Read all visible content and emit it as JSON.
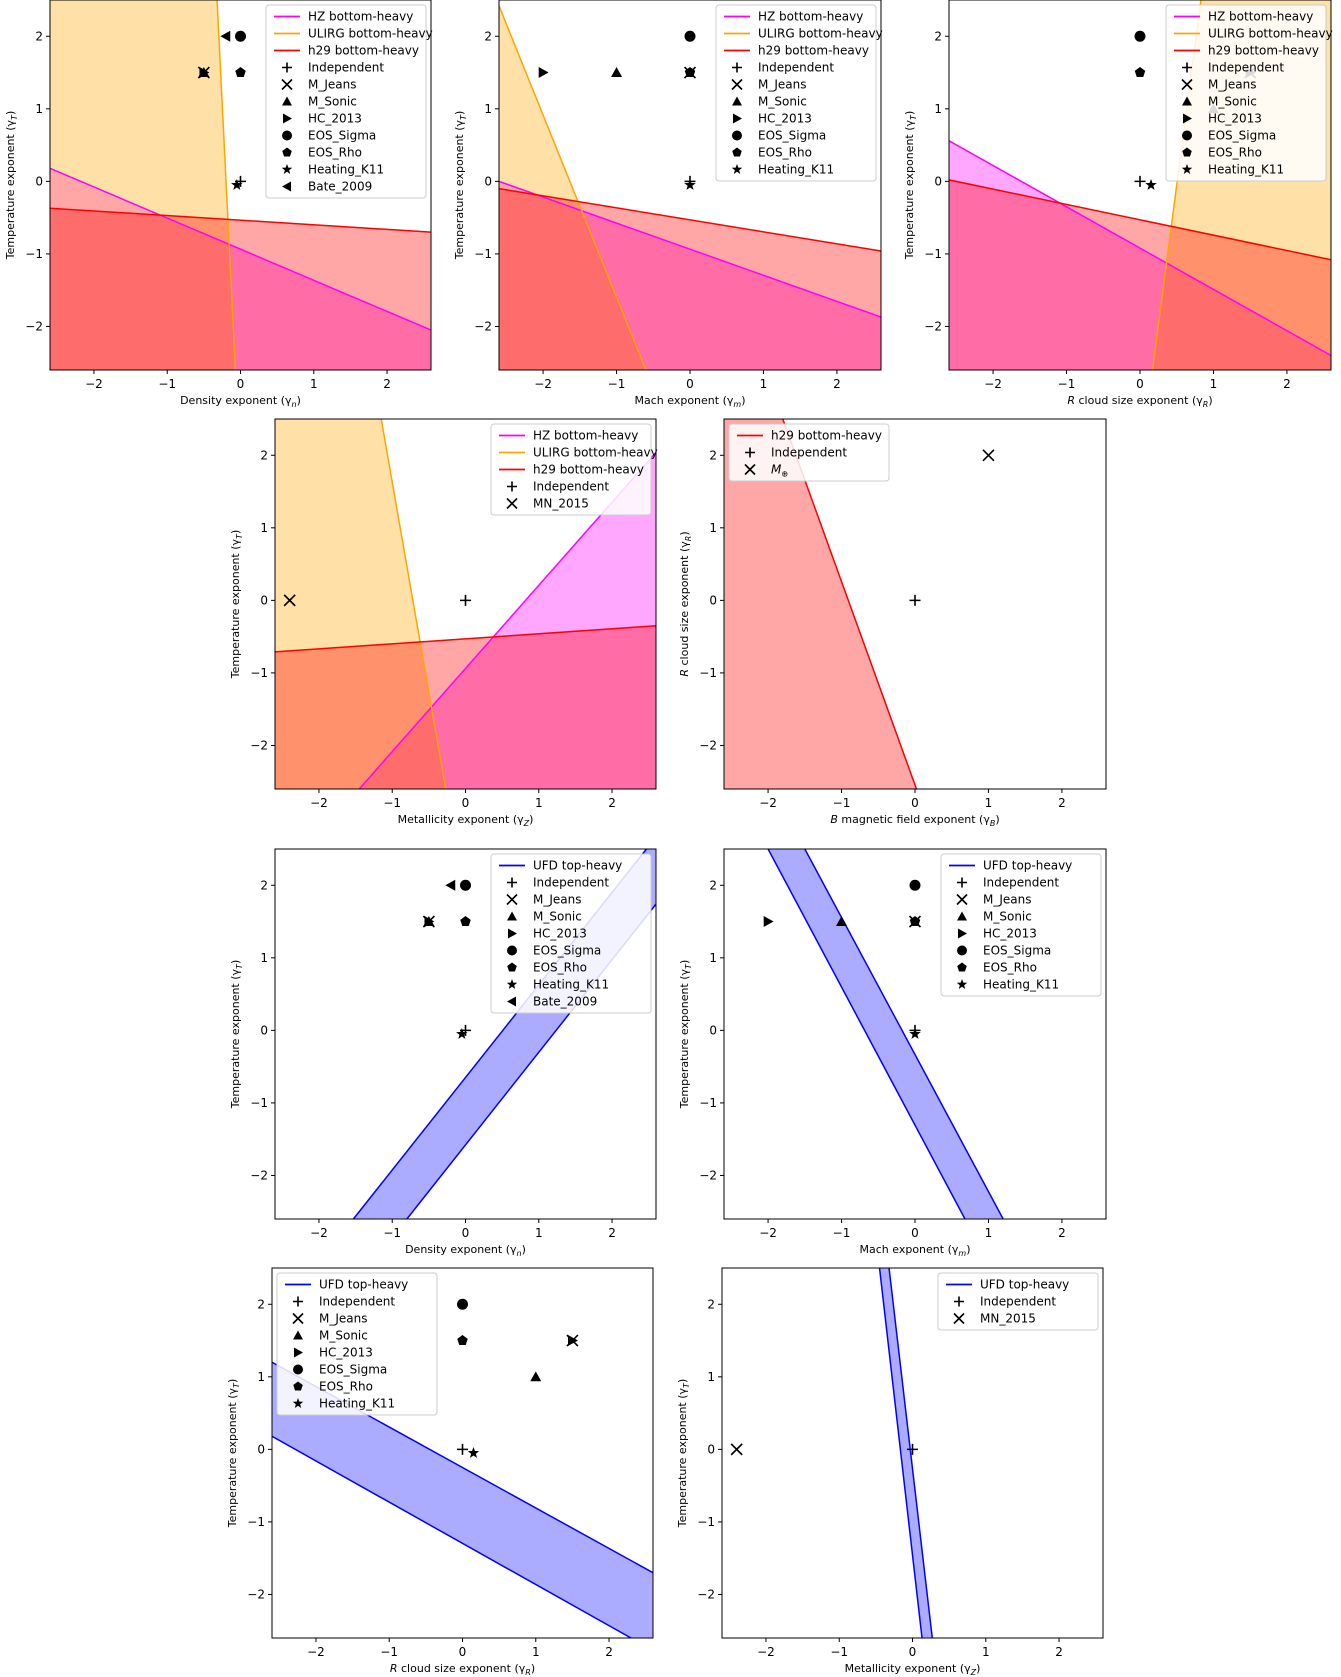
{
  "colors": {
    "HZ": "#ff00ff",
    "ULIRG": "#ffa500",
    "h29": "#ff0000",
    "UFD": "#0000ff",
    "fill_HZ": "#ff00ff",
    "fill_ULIRG": "#ffa500",
    "fill_h29": "#ff0000",
    "fill_UFD": "#0000ff"
  },
  "marker_shapes": {
    "Independent": "plus",
    "M_Jeans": "x",
    "M_Sonic": "triangle-up",
    "HC_2013": "triangle-right",
    "EOS_Sigma": "circle",
    "EOS_Rho": "pentagon",
    "Heating_K11": "star",
    "Bate_2009": "triangle-left",
    "MN_2015": "x",
    "M_oplus": "x"
  },
  "chart_data": [
    {
      "type": "scatter",
      "xlabel": "Density exponent (γ_n)",
      "ylabel": "Temperature exponent (γ_T)",
      "xlim": [
        -2.6,
        2.6
      ],
      "ylim": [
        -2.6,
        2.5
      ],
      "xticks": [
        -2,
        -1,
        0,
        1,
        2
      ],
      "yticks": [
        -2,
        -1,
        0,
        1,
        2
      ],
      "regions": [
        {
          "name": "HZ bottom-heavy",
          "color_key": "HZ",
          "line": [
            [
              -2.6,
              0.18
            ],
            [
              2.6,
              -2.05
            ]
          ],
          "fill": "below",
          "opacity": 0.35
        },
        {
          "name": "ULIRG bottom-heavy",
          "color_key": "ULIRG",
          "line": [
            [
              -0.32,
              2.5
            ],
            [
              -0.07,
              -2.6
            ]
          ],
          "fill": "left",
          "opacity": 0.35
        },
        {
          "name": "h29 bottom-heavy",
          "color_key": "h29",
          "line": [
            [
              -2.6,
              -0.37
            ],
            [
              2.6,
              -0.7
            ]
          ],
          "fill": "below",
          "opacity": 0.35
        }
      ],
      "points": [
        {
          "name": "Independent",
          "x": 0.0,
          "y": 0.0
        },
        {
          "name": "M_Jeans",
          "x": -0.5,
          "y": 1.5
        },
        {
          "name": "M_Sonic",
          "x": -0.5,
          "y": 1.5
        },
        {
          "name": "HC_2013",
          "x": -0.5,
          "y": 1.5
        },
        {
          "name": "EOS_Sigma",
          "x": 0.0,
          "y": 2.0
        },
        {
          "name": "EOS_Rho",
          "x": 0.0,
          "y": 1.5
        },
        {
          "name": "Heating_K11",
          "x": -0.05,
          "y": -0.05
        },
        {
          "name": "Bate_2009",
          "x": -0.2,
          "y": 2.0
        }
      ]
    },
    {
      "type": "scatter",
      "xlabel": "Mach exponent (γ_m)",
      "ylabel": "Temperature exponent (γ_T)",
      "xlim": [
        -2.6,
        2.6
      ],
      "ylim": [
        -2.6,
        2.5
      ],
      "xticks": [
        -2,
        -1,
        0,
        1,
        2
      ],
      "yticks": [
        -2,
        -1,
        0,
        1,
        2
      ],
      "regions": [
        {
          "name": "HZ bottom-heavy",
          "color_key": "HZ",
          "line": [
            [
              -2.6,
              0.0
            ],
            [
              2.6,
              -1.87
            ]
          ],
          "fill": "below",
          "opacity": 0.35
        },
        {
          "name": "ULIRG bottom-heavy",
          "color_key": "ULIRG",
          "line": [
            [
              -2.6,
              2.42
            ],
            [
              -0.6,
              -2.6
            ]
          ],
          "fill": "left",
          "opacity": 0.35
        },
        {
          "name": "h29 bottom-heavy",
          "color_key": "h29",
          "line": [
            [
              -2.6,
              -0.1
            ],
            [
              2.6,
              -0.96
            ]
          ],
          "fill": "below",
          "opacity": 0.35
        }
      ],
      "points": [
        {
          "name": "Independent",
          "x": 0.0,
          "y": 0.0
        },
        {
          "name": "M_Jeans",
          "x": 0.0,
          "y": 1.5
        },
        {
          "name": "M_Sonic",
          "x": -1.0,
          "y": 1.5
        },
        {
          "name": "HC_2013",
          "x": -2.0,
          "y": 1.5
        },
        {
          "name": "EOS_Sigma",
          "x": 0.0,
          "y": 2.0
        },
        {
          "name": "EOS_Rho",
          "x": 0.0,
          "y": 1.5
        },
        {
          "name": "Heating_K11",
          "x": 0.0,
          "y": -0.05
        }
      ]
    },
    {
      "type": "scatter",
      "xlabel": "R cloud size exponent (γ_R)",
      "ylabel": "Temperature exponent (γ_T)",
      "xlim": [
        -2.6,
        2.6
      ],
      "ylim": [
        -2.6,
        2.5
      ],
      "xticks": [
        -2,
        -1,
        0,
        1,
        2
      ],
      "yticks": [
        -2,
        -1,
        0,
        1,
        2
      ],
      "regions": [
        {
          "name": "HZ bottom-heavy",
          "color_key": "HZ",
          "line": [
            [
              -2.6,
              0.56
            ],
            [
              2.6,
              -2.4
            ]
          ],
          "fill": "below",
          "opacity": 0.35
        },
        {
          "name": "ULIRG bottom-heavy",
          "color_key": "ULIRG",
          "line": [
            [
              0.17,
              -2.6
            ],
            [
              0.83,
              2.5
            ]
          ],
          "fill": "right",
          "opacity": 0.35
        },
        {
          "name": "h29 bottom-heavy",
          "color_key": "h29",
          "line": [
            [
              -2.6,
              0.02
            ],
            [
              2.6,
              -1.08
            ]
          ],
          "fill": "below",
          "opacity": 0.35
        }
      ],
      "points": [
        {
          "name": "Independent",
          "x": 0.0,
          "y": 0.0
        },
        {
          "name": "M_Jeans",
          "x": 1.5,
          "y": 1.5
        },
        {
          "name": "M_Sonic",
          "x": 1.0,
          "y": 1.0
        },
        {
          "name": "HC_2013",
          "x": 1.5,
          "y": 1.5
        },
        {
          "name": "EOS_Sigma",
          "x": 0.0,
          "y": 2.0
        },
        {
          "name": "EOS_Rho",
          "x": 0.0,
          "y": 1.5
        },
        {
          "name": "Heating_K11",
          "x": 0.15,
          "y": -0.05
        }
      ]
    },
    {
      "type": "scatter",
      "xlabel": "Metallicity exponent (γ_Z)",
      "ylabel": "Temperature exponent (γ_T)",
      "xlim": [
        -2.6,
        2.6
      ],
      "ylim": [
        -2.6,
        2.5
      ],
      "xticks": [
        -2,
        -1,
        0,
        1,
        2
      ],
      "yticks": [
        -2,
        -1,
        0,
        1,
        2
      ],
      "regions": [
        {
          "name": "HZ bottom-heavy",
          "color_key": "HZ",
          "line": [
            [
              -1.45,
              -2.6
            ],
            [
              2.6,
              2.04
            ]
          ],
          "fill": "right",
          "opacity": 0.35
        },
        {
          "name": "ULIRG bottom-heavy",
          "color_key": "ULIRG",
          "line": [
            [
              -1.15,
              2.5
            ],
            [
              -0.27,
              -2.6
            ]
          ],
          "fill": "left",
          "opacity": 0.35
        },
        {
          "name": "h29 bottom-heavy",
          "color_key": "h29",
          "line": [
            [
              -2.6,
              -0.71
            ],
            [
              2.6,
              -0.35
            ]
          ],
          "fill": "below",
          "opacity": 0.35
        }
      ],
      "points": [
        {
          "name": "Independent",
          "x": 0.0,
          "y": 0.0
        },
        {
          "name": "MN_2015",
          "x": -2.4,
          "y": 0.0
        }
      ]
    },
    {
      "type": "scatter",
      "xlabel": "B magnetic field exponent (γ_B)",
      "ylabel": "R cloud size exponent (γ_R)",
      "xlim": [
        -2.6,
        2.6
      ],
      "ylim": [
        -2.6,
        2.5
      ],
      "xticks": [
        -2,
        -1,
        0,
        1,
        2
      ],
      "yticks": [
        -2,
        -1,
        0,
        1,
        2
      ],
      "regions": [
        {
          "name": "h29 bottom-heavy",
          "color_key": "h29",
          "line": [
            [
              -1.8,
              2.5
            ],
            [
              0.02,
              -2.6
            ]
          ],
          "fill": "left",
          "opacity": 0.35
        }
      ],
      "points": [
        {
          "name": "Independent",
          "x": 0.0,
          "y": 0.0
        },
        {
          "name": "M_⊕",
          "x": 1.0,
          "y": 2.0,
          "marker": "x"
        }
      ]
    },
    {
      "type": "scatter",
      "xlabel": "Density exponent (γ_n)",
      "ylabel": "Temperature exponent (γ_T)",
      "xlim": [
        -2.6,
        2.6
      ],
      "ylim": [
        -2.6,
        2.5
      ],
      "xticks": [
        -2,
        -1,
        0,
        1,
        2
      ],
      "yticks": [
        -2,
        -1,
        0,
        1,
        2
      ],
      "bands": [
        {
          "name": "UFD top-heavy",
          "color_key": "UFD",
          "line1": [
            [
              -1.53,
              -2.6
            ],
            [
              2.47,
              2.5
            ]
          ],
          "line2": [
            [
              -0.8,
              -2.6
            ],
            [
              2.6,
              1.74
            ]
          ],
          "opacity": 0.33
        }
      ],
      "points": [
        {
          "name": "Independent",
          "x": 0.0,
          "y": 0.0
        },
        {
          "name": "M_Jeans",
          "x": -0.5,
          "y": 1.5
        },
        {
          "name": "M_Sonic",
          "x": -0.5,
          "y": 1.5
        },
        {
          "name": "HC_2013",
          "x": -0.5,
          "y": 1.5
        },
        {
          "name": "EOS_Sigma",
          "x": 0.0,
          "y": 2.0
        },
        {
          "name": "EOS_Rho",
          "x": 0.0,
          "y": 1.5
        },
        {
          "name": "Heating_K11",
          "x": -0.05,
          "y": -0.05
        },
        {
          "name": "Bate_2009",
          "x": -0.2,
          "y": 2.0
        }
      ]
    },
    {
      "type": "scatter",
      "xlabel": "Mach exponent (γ_m)",
      "ylabel": "Temperature exponent (γ_T)",
      "xlim": [
        -2.6,
        2.6
      ],
      "ylim": [
        -2.6,
        2.5
      ],
      "xticks": [
        -2,
        -1,
        0,
        1,
        2
      ],
      "yticks": [
        -2,
        -1,
        0,
        1,
        2
      ],
      "bands": [
        {
          "name": "UFD top-heavy",
          "color_key": "UFD",
          "line1": [
            [
              -2.0,
              2.5
            ],
            [
              0.68,
              -2.6
            ]
          ],
          "line2": [
            [
              -1.5,
              2.5
            ],
            [
              1.2,
              -2.6
            ]
          ],
          "opacity": 0.33
        }
      ],
      "points": [
        {
          "name": "Independent",
          "x": 0.0,
          "y": 0.0
        },
        {
          "name": "M_Jeans",
          "x": 0.0,
          "y": 1.5
        },
        {
          "name": "M_Sonic",
          "x": -1.0,
          "y": 1.5
        },
        {
          "name": "HC_2013",
          "x": -2.0,
          "y": 1.5
        },
        {
          "name": "EOS_Sigma",
          "x": 0.0,
          "y": 2.0
        },
        {
          "name": "EOS_Rho",
          "x": 0.0,
          "y": 1.5
        },
        {
          "name": "Heating_K11",
          "x": 0.0,
          "y": -0.05
        }
      ]
    },
    {
      "type": "scatter",
      "xlabel": "R cloud size exponent (γ_R)",
      "ylabel": "Temperature exponent (γ_T)",
      "xlim": [
        -2.6,
        2.6
      ],
      "ylim": [
        -2.6,
        2.5
      ],
      "xticks": [
        -2,
        -1,
        0,
        1,
        2
      ],
      "yticks": [
        -2,
        -1,
        0,
        1,
        2
      ],
      "bands": [
        {
          "name": "UFD top-heavy",
          "color_key": "UFD",
          "line1": [
            [
              -2.6,
              1.2
            ],
            [
              2.6,
              -1.7
            ]
          ],
          "line2": [
            [
              -2.6,
              0.18
            ],
            [
              2.3,
              -2.6
            ]
          ],
          "opacity": 0.33
        }
      ],
      "points": [
        {
          "name": "Independent",
          "x": 0.0,
          "y": 0.0
        },
        {
          "name": "M_Jeans",
          "x": 1.5,
          "y": 1.5
        },
        {
          "name": "M_Sonic",
          "x": 1.0,
          "y": 1.0
        },
        {
          "name": "HC_2013",
          "x": 1.5,
          "y": 1.5
        },
        {
          "name": "EOS_Sigma",
          "x": 0.0,
          "y": 2.0
        },
        {
          "name": "EOS_Rho",
          "x": 0.0,
          "y": 1.5
        },
        {
          "name": "Heating_K11",
          "x": 0.15,
          "y": -0.05
        }
      ]
    },
    {
      "type": "scatter",
      "xlabel": "Metallicity exponent (γ_Z)",
      "ylabel": "Temperature exponent (γ_T)",
      "xlim": [
        -2.6,
        2.6
      ],
      "ylim": [
        -2.6,
        2.5
      ],
      "xticks": [
        -2,
        -1,
        0,
        1,
        2
      ],
      "yticks": [
        -2,
        -1,
        0,
        1,
        2
      ],
      "bands": [
        {
          "name": "UFD top-heavy",
          "color_key": "UFD",
          "line1": [
            [
              -0.45,
              2.5
            ],
            [
              0.13,
              -2.6
            ]
          ],
          "line2": [
            [
              -0.32,
              2.5
            ],
            [
              0.27,
              -2.6
            ]
          ],
          "opacity": 0.33
        }
      ],
      "points": [
        {
          "name": "Independent",
          "x": 0.0,
          "y": 0.0
        },
        {
          "name": "MN_2015",
          "x": -2.4,
          "y": 0.0
        }
      ]
    }
  ]
}
